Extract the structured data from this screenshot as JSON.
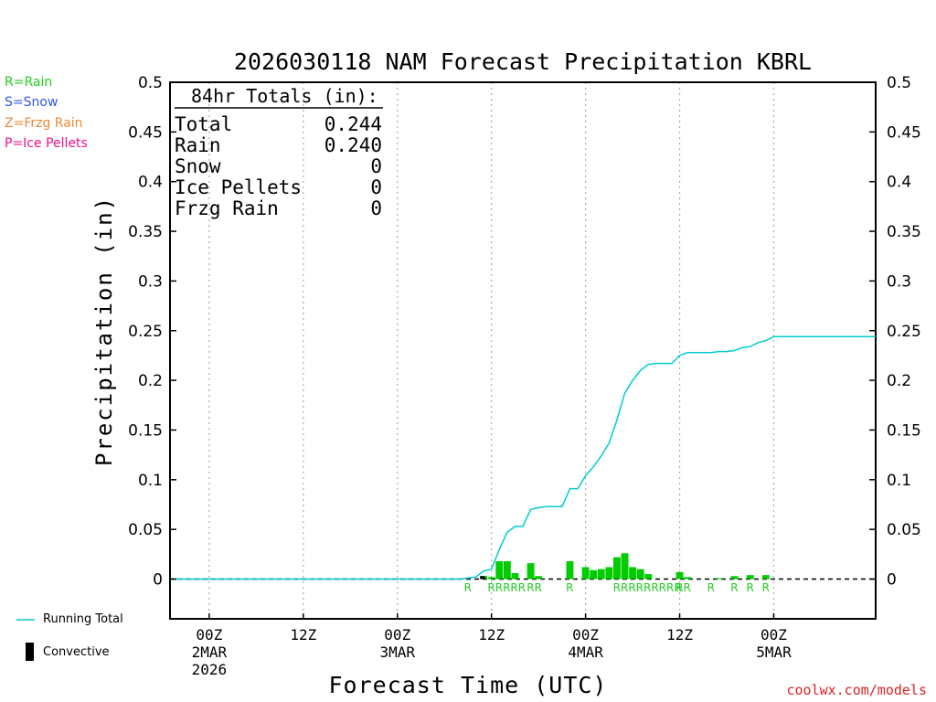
{
  "chart_data": {
    "type": "bar+line",
    "title": "2026030118 NAM Forecast Precipitation KBRL",
    "xlabel": "Forecast Time (UTC)",
    "ylabel": "Precipitation (in)",
    "ylim": [
      -0.04,
      0.5
    ],
    "yticks": [
      0,
      0.05,
      0.1,
      0.15,
      0.2,
      0.25,
      0.3,
      0.35,
      0.4,
      0.45,
      0.5
    ],
    "ytick_labels": [
      "0",
      "0.05",
      "0.1",
      "0.15",
      "0.2",
      "0.25",
      "0.3",
      "0.35",
      "0.4",
      "0.45",
      "0.5"
    ],
    "xlim_hours": [
      -5,
      85
    ],
    "x_ticks": [
      {
        "hour": 0,
        "lines": [
          "00Z",
          "2MAR",
          "2026"
        ]
      },
      {
        "hour": 12,
        "lines": [
          "12Z"
        ]
      },
      {
        "hour": 24,
        "lines": [
          "00Z",
          "3MAR"
        ]
      },
      {
        "hour": 36,
        "lines": [
          "12Z"
        ]
      },
      {
        "hour": 48,
        "lines": [
          "00Z",
          "4MAR"
        ]
      },
      {
        "hour": 60,
        "lines": [
          "12Z"
        ]
      },
      {
        "hour": 72,
        "lines": [
          "00Z",
          "5MAR"
        ]
      }
    ],
    "totals": {
      "heading": "84hr Totals (in):",
      "rows": [
        {
          "label": "Total",
          "value": "0.244"
        },
        {
          "label": "Rain",
          "value": "0.240"
        },
        {
          "label": "Snow",
          "value": "0"
        },
        {
          "label": "Ice Pellets",
          "value": "0"
        },
        {
          "label": "Frzg Rain",
          "value": "0"
        }
      ]
    },
    "type_legend": [
      {
        "text": "R=Rain",
        "color": "#22cc22"
      },
      {
        "text": "S=Snow",
        "color": "#3355ee"
      },
      {
        "text": "Z=Frzg Rain",
        "color": "#ee8833"
      },
      {
        "text": "P=Ice Pellets",
        "color": "#ee1188"
      }
    ],
    "series_legend": {
      "running_total": "Running Total",
      "convective": "Convective"
    },
    "colors": {
      "bar": "#00cc00",
      "line": "#00cccc",
      "convective": "#000000",
      "ptype": "#22cc22"
    },
    "hourly_bars": [
      {
        "hour": 35,
        "value": 0.003
      },
      {
        "hour": 36,
        "value": 0.002
      },
      {
        "hour": 37,
        "value": 0.018
      },
      {
        "hour": 38,
        "value": 0.018
      },
      {
        "hour": 39,
        "value": 0.006
      },
      {
        "hour": 41,
        "value": 0.016
      },
      {
        "hour": 42,
        "value": 0.003
      },
      {
        "hour": 46,
        "value": 0.018
      },
      {
        "hour": 48,
        "value": 0.012
      },
      {
        "hour": 49,
        "value": 0.009
      },
      {
        "hour": 50,
        "value": 0.01
      },
      {
        "hour": 51,
        "value": 0.012
      },
      {
        "hour": 52,
        "value": 0.022
      },
      {
        "hour": 53,
        "value": 0.026
      },
      {
        "hour": 54,
        "value": 0.012
      },
      {
        "hour": 55,
        "value": 0.01
      },
      {
        "hour": 56,
        "value": 0.005
      },
      {
        "hour": 60,
        "value": 0.007
      },
      {
        "hour": 61,
        "value": 0.002
      },
      {
        "hour": 65,
        "value": 0.001
      },
      {
        "hour": 67,
        "value": 0.003
      },
      {
        "hour": 69,
        "value": 0.004
      },
      {
        "hour": 71,
        "value": 0.004
      }
    ],
    "convective_bars": [
      {
        "hour": 35,
        "value": 0.003
      }
    ],
    "precip_type_marks": [
      {
        "hour": 33,
        "code": "R"
      },
      {
        "hour": 36,
        "code": "RRRRR"
      },
      {
        "hour": 41,
        "code": "RR"
      },
      {
        "hour": 46,
        "code": "R"
      },
      {
        "hour": 52,
        "code": "RRRRRRRRR"
      },
      {
        "hour": 60,
        "code": "RR"
      },
      {
        "hour": 64,
        "code": "R"
      },
      {
        "hour": 67,
        "code": "R"
      },
      {
        "hour": 69,
        "code": "R"
      },
      {
        "hour": 71,
        "code": "R"
      }
    ],
    "running_total": [
      [
        -5,
        0
      ],
      [
        32,
        0
      ],
      [
        33,
        0.001
      ],
      [
        34,
        0.002
      ],
      [
        35,
        0.008
      ],
      [
        36,
        0.01
      ],
      [
        37,
        0.03
      ],
      [
        38,
        0.047
      ],
      [
        39,
        0.053
      ],
      [
        40,
        0.053
      ],
      [
        41,
        0.07
      ],
      [
        42,
        0.072
      ],
      [
        43,
        0.073
      ],
      [
        44,
        0.073
      ],
      [
        45,
        0.073
      ],
      [
        46,
        0.091
      ],
      [
        47,
        0.091
      ],
      [
        48,
        0.104
      ],
      [
        49,
        0.113
      ],
      [
        50,
        0.124
      ],
      [
        51,
        0.137
      ],
      [
        52,
        0.16
      ],
      [
        53,
        0.187
      ],
      [
        54,
        0.2
      ],
      [
        55,
        0.21
      ],
      [
        56,
        0.216
      ],
      [
        57,
        0.217
      ],
      [
        58,
        0.217
      ],
      [
        59,
        0.217
      ],
      [
        60,
        0.225
      ],
      [
        61,
        0.228
      ],
      [
        62,
        0.228
      ],
      [
        63,
        0.228
      ],
      [
        64,
        0.228
      ],
      [
        65,
        0.229
      ],
      [
        66,
        0.229
      ],
      [
        67,
        0.23
      ],
      [
        68,
        0.233
      ],
      [
        69,
        0.234
      ],
      [
        70,
        0.238
      ],
      [
        71,
        0.24
      ],
      [
        72,
        0.244
      ],
      [
        85,
        0.244
      ]
    ]
  },
  "credit": "coolwx.com/models"
}
